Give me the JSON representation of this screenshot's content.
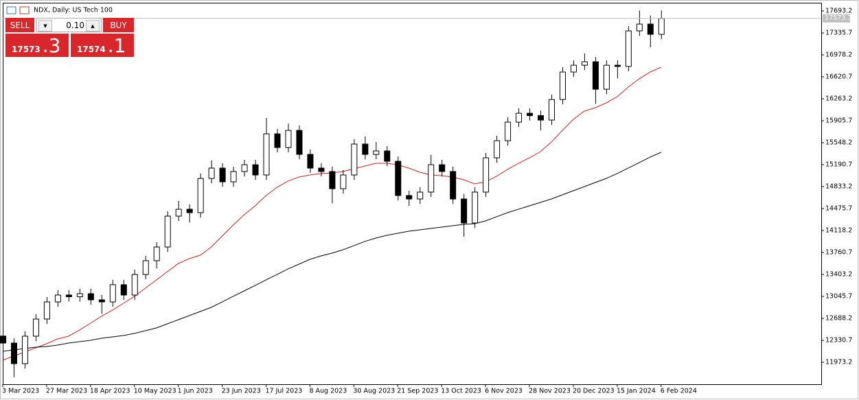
{
  "header": {
    "title": "NDX, Daily:  US Tech 100"
  },
  "trade_panel": {
    "sell": "SELL",
    "buy": "BUY",
    "lot": "0.10",
    "bid_big": "17573",
    "bid_small": ".3",
    "ask_big": "17574",
    "ask_small": ".1"
  },
  "chart_data": {
    "type": "candlestick",
    "categories": [
      "3 Mar 2023",
      null,
      null,
      null,
      "27 Mar 2023",
      null,
      null,
      null,
      "18 Apr 2023",
      null,
      null,
      null,
      "10 May 2023",
      null,
      null,
      null,
      "1 Jun 2023",
      null,
      null,
      null,
      "23 Jun 2023",
      null,
      null,
      null,
      "17 Jul 2023",
      null,
      null,
      null,
      "8 Aug 2023",
      null,
      null,
      null,
      "30 Aug 2023",
      null,
      null,
      null,
      "21 Sep 2023",
      null,
      null,
      null,
      "13 Oct 2023",
      null,
      null,
      null,
      "6 Nov 2023",
      null,
      null,
      null,
      "28 Nov 2023",
      null,
      null,
      null,
      "20 Dec 2023",
      null,
      null,
      null,
      "15 Jan 2024",
      null,
      null,
      null,
      "6 Feb 2024"
    ],
    "open": [
      12400,
      12286,
      11950,
      12398,
      12677,
      12956,
      13068,
      13040,
      13090,
      12990,
      12956,
      13236,
      13068,
      13403,
      13627,
      13850,
      14353,
      14465,
      14409,
      14967,
      15135,
      14911,
      15079,
      15190,
      15023,
      15693,
      15470,
      15749,
      15358,
      15135,
      15079,
      14799,
      15023,
      15526,
      15358,
      15414,
      15246,
      14688,
      14632,
      14744,
      15190,
      15079,
      14632,
      14241,
      14744,
      15302,
      15581,
      15883,
      16028,
      15990,
      15917,
      16252,
      16699,
      16810,
      16866,
      16419,
      16810,
      16790,
      17369,
      17480,
      17313
    ],
    "high": [
      12480,
      12366,
      12478,
      12757,
      13036,
      13148,
      13148,
      13170,
      13170,
      13070,
      13316,
      13316,
      13483,
      13707,
      13930,
      14433,
      14600,
      14545,
      15047,
      15260,
      15215,
      15159,
      15270,
      15270,
      15950,
      15773,
      15860,
      15829,
      15438,
      15215,
      15159,
      15103,
      15606,
      15650,
      15560,
      15494,
      15326,
      14768,
      14824,
      15350,
      15270,
      15159,
      14712,
      14824,
      15382,
      15661,
      15963,
      16108,
      16108,
      16070,
      16332,
      16779,
      16890,
      17000,
      16946,
      16890,
      16890,
      17449,
      17700,
      17620,
      17700
    ],
    "low": [
      12206,
      11730,
      11870,
      12318,
      12597,
      12876,
      12960,
      12960,
      12910,
      12760,
      12876,
      12988,
      12988,
      13323,
      13500,
      13770,
      14273,
      14250,
      14329,
      14887,
      14831,
      14831,
      14999,
      14943,
      14943,
      15390,
      15390,
      15278,
      15055,
      14999,
      14560,
      14719,
      14943,
      15278,
      15278,
      15166,
      14608,
      14520,
      14552,
      14664,
      14999,
      14552,
      14020,
      14161,
      14664,
      15222,
      15501,
      15803,
      15910,
      15750,
      15837,
      16172,
      16619,
      16730,
      16180,
      16339,
      16600,
      16710,
      17289,
      17100,
      17233
    ],
    "close": [
      12286,
      11950,
      12398,
      12677,
      12956,
      13068,
      13040,
      13090,
      12990,
      12956,
      13236,
      13068,
      13403,
      13627,
      13850,
      14353,
      14465,
      14409,
      14967,
      15135,
      14911,
      15079,
      15190,
      15023,
      15693,
      15470,
      15749,
      15358,
      15135,
      15079,
      14799,
      15023,
      15526,
      15358,
      15414,
      15246,
      14688,
      14632,
      14744,
      15190,
      15079,
      14632,
      14241,
      14744,
      15302,
      15581,
      15883,
      16028,
      15990,
      15917,
      16252,
      16699,
      16810,
      16866,
      16419,
      16810,
      16790,
      17369,
      17480,
      17313,
      17573
    ],
    "up_color": "#ffffff",
    "down_color": "#000000",
    "candle_outline": "#000000",
    "moving_averages": [
      {
        "color": "#d42020",
        "values": [
          12007,
          12074,
          12141,
          12208,
          12275,
          12353,
          12398,
          12498,
          12610,
          12722,
          12822,
          12934,
          13046,
          13180,
          13314,
          13448,
          13582,
          13660,
          13716,
          13850,
          14029,
          14208,
          14375,
          14520,
          14688,
          14822,
          14923,
          14990,
          15023,
          15046,
          15057,
          15079,
          15124,
          15168,
          15213,
          15213,
          15190,
          15135,
          15068,
          15023,
          15012,
          14990,
          14945,
          14878,
          14911,
          15001,
          15113,
          15213,
          15302,
          15403,
          15559,
          15749,
          15928,
          16062,
          16118,
          16196,
          16297,
          16453,
          16587,
          16699,
          16777
        ]
      },
      {
        "color": "#000000",
        "values": [
          12152,
          12174,
          12197,
          12219,
          12230,
          12253,
          12286,
          12308,
          12331,
          12364,
          12387,
          12409,
          12442,
          12487,
          12532,
          12599,
          12666,
          12733,
          12800,
          12867,
          12956,
          13046,
          13135,
          13224,
          13314,
          13403,
          13493,
          13571,
          13649,
          13705,
          13750,
          13805,
          13872,
          13940,
          13995,
          14040,
          14074,
          14107,
          14130,
          14152,
          14174,
          14197,
          14219,
          14230,
          14275,
          14342,
          14409,
          14465,
          14520,
          14576,
          14632,
          14699,
          14766,
          14833,
          14900,
          14967,
          15046,
          15135,
          15224,
          15314,
          15392
        ]
      }
    ],
    "current_price": 17573.3,
    "ylim": [
      11615.7,
      17827.3
    ],
    "yticks": [
      11973.2,
      12330.7,
      12688.2,
      13045.7,
      13403.2,
      13760.7,
      14118.2,
      14475.7,
      14833.2,
      15190.7,
      15548.2,
      15905.7,
      16263.2,
      16620.7,
      16978.2,
      17335.7,
      17693.2
    ]
  }
}
